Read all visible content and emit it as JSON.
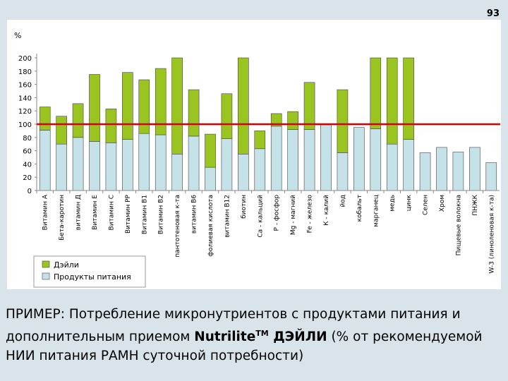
{
  "slide": {
    "number": "93"
  },
  "caption": {
    "part1": "ПРИМЕР: Потребление микронутриентов с продуктами питания и дополнительным приемом ",
    "brand": "Nutrilite",
    "tm": "TM",
    "brand2": " ДЭЙЛИ",
    "part2": " (% от рекомендуемой НИИ питания РАМН суточной потребности)"
  },
  "chart_data": {
    "type": "bar",
    "stacked": true,
    "ylabel": "%",
    "ylim": [
      0,
      200
    ],
    "yticks": [
      0,
      20,
      40,
      60,
      80,
      100,
      120,
      140,
      160,
      180,
      200
    ],
    "reference_line": 100,
    "categories": [
      "Витамин А",
      "Бета-каротин",
      "витамин Д",
      "Витамин Е",
      "Витамин С",
      "Витамин РР",
      "Витамин В1",
      "Витамин В2",
      "пантотеновая к-та",
      "витамин В6",
      "фолиевая кислота",
      "витамин В12",
      "биотин",
      "Са - кальций",
      "Р - фосфор",
      "Mg - магний",
      "Fe - железо",
      "К - калий",
      "йод",
      "кобальт",
      "марганец",
      "медь",
      "цинк",
      "Селен",
      "Хром",
      "Пищевые волокна",
      "ПНЖК",
      "W-3 (линоленовая к-та)"
    ],
    "series": [
      {
        "name": "Продукты питания",
        "color": "#c5e2e9",
        "values": [
          91,
          70,
          80,
          74,
          72,
          77,
          86,
          84,
          55,
          82,
          35,
          78,
          55,
          63,
          97,
          92,
          92,
          99,
          57,
          95,
          93,
          70,
          77,
          57,
          65,
          58,
          65,
          42
        ]
      },
      {
        "name": "Дэйли",
        "color": "#9ac41f",
        "values": [
          35,
          42,
          51,
          101,
          51,
          101,
          81,
          100,
          145,
          70,
          50,
          68,
          145,
          27,
          19,
          27,
          71,
          0,
          95,
          0,
          107,
          130,
          123,
          0,
          0,
          0,
          0,
          0
        ]
      }
    ],
    "legend_order": [
      "Дэйли",
      "Продукты питания"
    ],
    "legend_position": "bottom-left",
    "reference_color": "#d40000"
  }
}
